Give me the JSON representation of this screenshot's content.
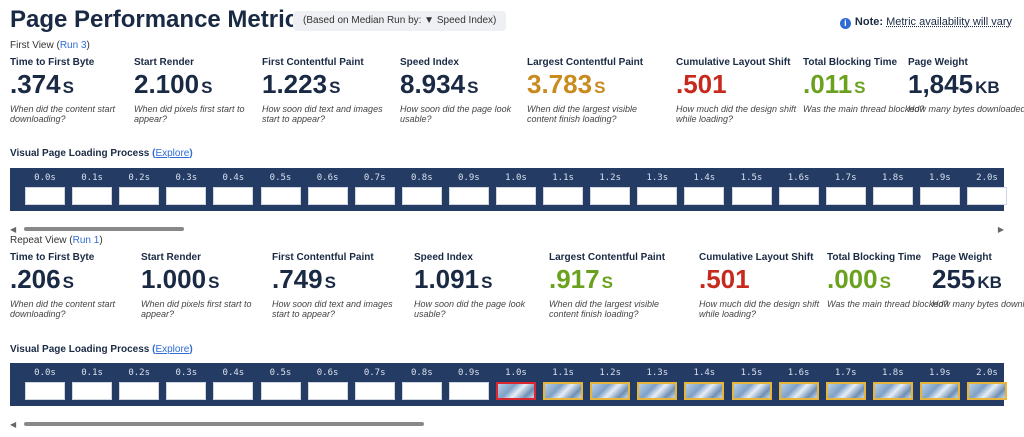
{
  "header": {
    "title": "Page Performance Metrics",
    "median_note": "(Based on Median Run by: ▼ Speed Index)",
    "note_label": "Note:",
    "note_text": "Metric availability will vary"
  },
  "first_view": {
    "label_prefix": "First View (",
    "run_link": "Run 3",
    "label_suffix": ")",
    "metrics": [
      {
        "label": "Time to First Byte",
        "value": ".374",
        "unit": "S",
        "desc": "When did the content start downloading?",
        "color": "#1a2a44"
      },
      {
        "label": "Start Render",
        "value": "2.100",
        "unit": "S",
        "desc": "When did pixels first start to appear?",
        "color": "#1a2a44"
      },
      {
        "label": "First Contentful Paint",
        "value": "1.223",
        "unit": "S",
        "desc": "How soon did text and images start to appear?",
        "color": "#1a2a44"
      },
      {
        "label": "Speed Index",
        "value": "8.934",
        "unit": "S",
        "desc": "How soon did the page look usable?",
        "color": "#1a2a44"
      },
      {
        "label": "Largest Contentful Paint",
        "value": "3.783",
        "unit": "S",
        "desc": "When did the largest visible content finish loading?",
        "color": "#c98a1e"
      },
      {
        "label": "Cumulative Layout Shift",
        "value": ".501",
        "unit": "",
        "desc": "How much did the design shift while loading?",
        "color": "#c7291c"
      },
      {
        "label": "Total Blocking Time",
        "value": ".011",
        "unit": "S",
        "desc": "Was the main thread blocked?",
        "color": "#6aa21f"
      },
      {
        "label": "Page Weight",
        "value": "1,845",
        "unit": "KB",
        "desc": "How many bytes downloaded?",
        "color": "#1a2a44"
      }
    ],
    "visual_label": "Visual Page Loading Process",
    "explore_link": "Explore",
    "frames": [
      "0.0s",
      "0.1s",
      "0.2s",
      "0.3s",
      "0.4s",
      "0.5s",
      "0.6s",
      "0.7s",
      "0.8s",
      "0.9s",
      "1.0s",
      "1.1s",
      "1.2s",
      "1.3s",
      "1.4s",
      "1.5s",
      "1.6s",
      "1.7s",
      "1.8s",
      "1.9s",
      "2.0s"
    ]
  },
  "repeat_view": {
    "label_prefix": "Repeat View (",
    "run_link": "Run 1",
    "label_suffix": ")",
    "metrics": [
      {
        "label": "Time to First Byte",
        "value": ".206",
        "unit": "S",
        "desc": "When did the content start downloading?",
        "color": "#1a2a44"
      },
      {
        "label": "Start Render",
        "value": "1.000",
        "unit": "S",
        "desc": "When did pixels first start to appear?",
        "color": "#1a2a44"
      },
      {
        "label": "First Contentful Paint",
        "value": ".749",
        "unit": "S",
        "desc": "How soon did text and images start to appear?",
        "color": "#1a2a44"
      },
      {
        "label": "Speed Index",
        "value": "1.091",
        "unit": "S",
        "desc": "How soon did the page look usable?",
        "color": "#1a2a44"
      },
      {
        "label": "Largest Contentful Paint",
        "value": ".917",
        "unit": "S",
        "desc": "When did the largest visible content finish loading?",
        "color": "#6aa21f"
      },
      {
        "label": "Cumulative Layout Shift",
        "value": ".501",
        "unit": "",
        "desc": "How much did the design shift while loading?",
        "color": "#c7291c"
      },
      {
        "label": "Total Blocking Time",
        "value": ".000",
        "unit": "S",
        "desc": "Was the main thread blocked?",
        "color": "#6aa21f"
      },
      {
        "label": "Page Weight",
        "value": "255",
        "unit": "KB",
        "desc": "How many bytes downloaded?",
        "color": "#1a2a44"
      }
    ],
    "visual_label": "Visual Page Loading Process",
    "explore_link": "Explore",
    "frames": [
      "0.0s",
      "0.1s",
      "0.2s",
      "0.3s",
      "0.4s",
      "0.5s",
      "0.6s",
      "0.7s",
      "0.8s",
      "0.9s",
      "1.0s",
      "1.1s",
      "1.2s",
      "1.3s",
      "1.4s",
      "1.5s",
      "1.6s",
      "1.7s",
      "1.8s",
      "1.9s",
      "2.0s"
    ]
  }
}
